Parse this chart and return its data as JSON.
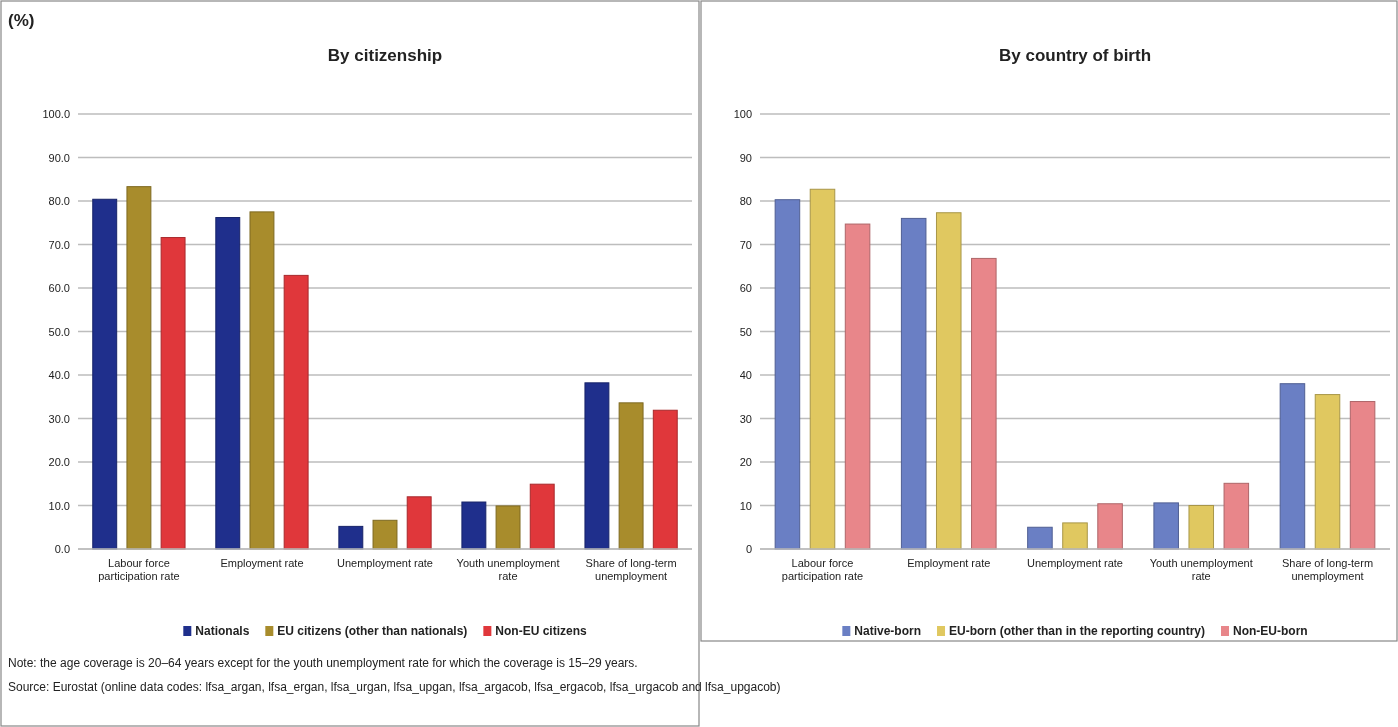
{
  "chart_data": [
    {
      "type": "bar",
      "title": "By citizenship",
      "ylabel": "(%)",
      "categories": [
        "Labour force participation rate",
        "Employment rate",
        "Unemployment rate",
        "Youth unemployment rate",
        "Share of long-term unemployment"
      ],
      "series": [
        {
          "name": "Nationals",
          "color": "#1f2f8c",
          "values": [
            80.4,
            76.2,
            5.2,
            10.8,
            38.2
          ]
        },
        {
          "name": "EU citizens (other than nationals)",
          "color": "#a88c2c",
          "values": [
            83.3,
            77.5,
            6.6,
            9.9,
            33.6
          ]
        },
        {
          "name": "Non-EU citizens",
          "color": "#e0373b",
          "values": [
            71.6,
            62.9,
            12.0,
            14.9,
            31.9
          ]
        }
      ],
      "ylim": [
        0,
        100
      ],
      "yticks": [
        {
          "value": 0,
          "label": "0.0"
        },
        {
          "value": 10,
          "label": "10.0"
        },
        {
          "value": 20,
          "label": "20.0"
        },
        {
          "value": 30,
          "label": "30.0"
        },
        {
          "value": 40,
          "label": "40.0"
        },
        {
          "value": 50,
          "label": "50.0"
        },
        {
          "value": 60,
          "label": "60.0"
        },
        {
          "value": 70,
          "label": "70.0"
        },
        {
          "value": 80,
          "label": "80.0"
        },
        {
          "value": 90,
          "label": "90.0"
        },
        {
          "value": 100,
          "label": "100.0"
        }
      ],
      "grid": "y",
      "legend": "bottom",
      "annotations": [
        "Note: the age coverage is 20–64 years except for the youth unemployment rate for which the coverage is 15–29 years.",
        "Source: Eurostat (online data codes: lfsa_argan, lfsa_ergan, lfsa_urgan, lfsa_upgan, lfsa_argacob, lfsa_ergacob, lfsa_urgacob and lfsa_upgacob)"
      ]
    },
    {
      "type": "bar",
      "title": "By country of birth",
      "categories": [
        "Labour force participation rate",
        "Employment rate",
        "Unemployment rate",
        "Youth unemployment rate",
        "Share of long-term unemployment"
      ],
      "series": [
        {
          "name": "Native-born",
          "color": "#6a7fc4",
          "values": [
            80.3,
            76.0,
            5.0,
            10.6,
            38.0
          ]
        },
        {
          "name": "EU-born (other than in the reporting country)",
          "color": "#e0c860",
          "values": [
            82.7,
            77.3,
            6.0,
            10.0,
            35.5
          ]
        },
        {
          "name": "Non-EU-born",
          "color": "#e8868a",
          "values": [
            74.7,
            66.8,
            10.4,
            15.1,
            33.9
          ]
        }
      ],
      "ylim": [
        0,
        100
      ],
      "yticks": [
        0,
        10,
        20,
        30,
        40,
        50,
        60,
        70,
        80,
        90,
        100
      ],
      "grid": "y",
      "legend": "bottom"
    }
  ]
}
